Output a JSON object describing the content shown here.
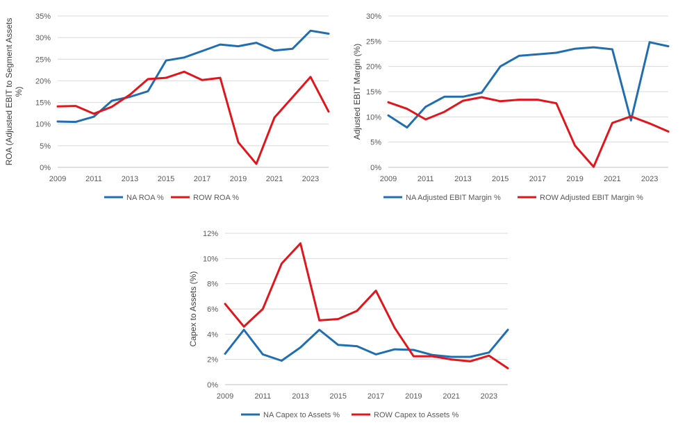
{
  "colors": {
    "na": "#1f6eb2",
    "row": "#e3141b",
    "grid": "#d9d9d9",
    "text": "#595959"
  },
  "chart_data": [
    {
      "type": "line",
      "ylabel_lines": [
        "ROA (Adjusted EBIT to Segment Assets",
        "%)"
      ],
      "ylim": [
        0,
        35
      ],
      "yticks": [
        0,
        5,
        10,
        15,
        20,
        25,
        30,
        35
      ],
      "y_tick_labels": [
        "0%",
        "5%",
        "10%",
        "15%",
        "20%",
        "25%",
        "30%",
        "35%"
      ],
      "xlim": [
        2009,
        2024
      ],
      "xticks": [
        2009,
        2011,
        2013,
        2015,
        2017,
        2019,
        2021,
        2023
      ],
      "x_tick_labels": [
        "2009",
        "2011",
        "2013",
        "2015",
        "2017",
        "2019",
        "2021",
        "2023"
      ],
      "x": [
        2009,
        2010,
        2011,
        2012,
        2013,
        2014,
        2015,
        2016,
        2017,
        2018,
        2019,
        2020,
        2021,
        2022,
        2023,
        2024
      ],
      "grid": true,
      "legend": "bottom",
      "series": [
        {
          "name": "NA ROA %",
          "color": "#1f6eb2",
          "values": [
            10.6,
            10.5,
            11.7,
            15.4,
            16.3,
            17.6,
            24.7,
            25.4,
            26.9,
            28.4,
            28.0,
            28.8,
            27.0,
            27.4,
            31.6,
            30.9
          ]
        },
        {
          "name": "ROW ROA %",
          "color": "#e3141b",
          "values": [
            14.1,
            14.2,
            12.4,
            14.0,
            16.8,
            20.4,
            20.7,
            22.1,
            20.2,
            20.7,
            5.8,
            0.8,
            11.5,
            16.2,
            20.9,
            12.9
          ]
        }
      ]
    },
    {
      "type": "line",
      "ylabel_lines": [
        "Adjusted EBIT Margin (%)"
      ],
      "ylim": [
        0,
        30
      ],
      "yticks": [
        0,
        5,
        10,
        15,
        20,
        25,
        30
      ],
      "y_tick_labels": [
        "0%",
        "5%",
        "10%",
        "15%",
        "20%",
        "25%",
        "30%"
      ],
      "xlim": [
        2009,
        2024
      ],
      "xticks": [
        2009,
        2011,
        2013,
        2015,
        2017,
        2019,
        2021,
        2023
      ],
      "x_tick_labels": [
        "2009",
        "2011",
        "2013",
        "2015",
        "2017",
        "2019",
        "2021",
        "2023"
      ],
      "x": [
        2009,
        2010,
        2011,
        2012,
        2013,
        2014,
        2015,
        2016,
        2017,
        2018,
        2019,
        2020,
        2021,
        2022,
        2023,
        2024
      ],
      "grid": true,
      "legend": "bottom",
      "series": [
        {
          "name": "NA Adjusted EBIT Margin %",
          "color": "#1f6eb2",
          "values": [
            10.3,
            7.9,
            12.0,
            14.0,
            14.0,
            14.8,
            20.0,
            22.1,
            22.4,
            22.7,
            23.5,
            23.8,
            23.4,
            9.3,
            24.8,
            24.0
          ]
        },
        {
          "name": "ROW Adjusted EBIT Margin %",
          "color": "#e3141b",
          "values": [
            12.9,
            11.6,
            9.5,
            11.0,
            13.2,
            13.9,
            13.1,
            13.4,
            13.4,
            12.7,
            4.3,
            0.1,
            8.8,
            10.1,
            8.7,
            7.1
          ]
        }
      ]
    },
    {
      "type": "line",
      "ylabel_lines": [
        "Capex to Assets (%)"
      ],
      "ylim": [
        0,
        12
      ],
      "yticks": [
        0,
        2,
        4,
        6,
        8,
        10,
        12
      ],
      "y_tick_labels": [
        "0%",
        "2%",
        "4%",
        "6%",
        "8%",
        "10%",
        "12%"
      ],
      "xlim": [
        2009,
        2024
      ],
      "xticks": [
        2009,
        2011,
        2013,
        2015,
        2017,
        2019,
        2021,
        2023
      ],
      "x_tick_labels": [
        "2009",
        "2011",
        "2013",
        "2015",
        "2017",
        "2019",
        "2021",
        "2023"
      ],
      "x": [
        2009,
        2010,
        2011,
        2012,
        2013,
        2014,
        2015,
        2016,
        2017,
        2018,
        2019,
        2020,
        2021,
        2022,
        2023,
        2024
      ],
      "grid": true,
      "legend": "bottom",
      "series": [
        {
          "name": "NA Capex to Assets %",
          "color": "#1f6eb2",
          "values": [
            2.45,
            4.35,
            2.4,
            1.9,
            2.95,
            4.35,
            3.15,
            3.05,
            2.4,
            2.8,
            2.75,
            2.35,
            2.2,
            2.2,
            2.55,
            4.35
          ]
        },
        {
          "name": "ROW Capex to Assets %",
          "color": "#e3141b",
          "values": [
            6.4,
            4.6,
            6.0,
            9.6,
            11.2,
            5.1,
            5.2,
            5.85,
            7.45,
            4.5,
            2.25,
            2.25,
            2.0,
            1.85,
            2.3,
            1.3
          ]
        }
      ]
    }
  ]
}
